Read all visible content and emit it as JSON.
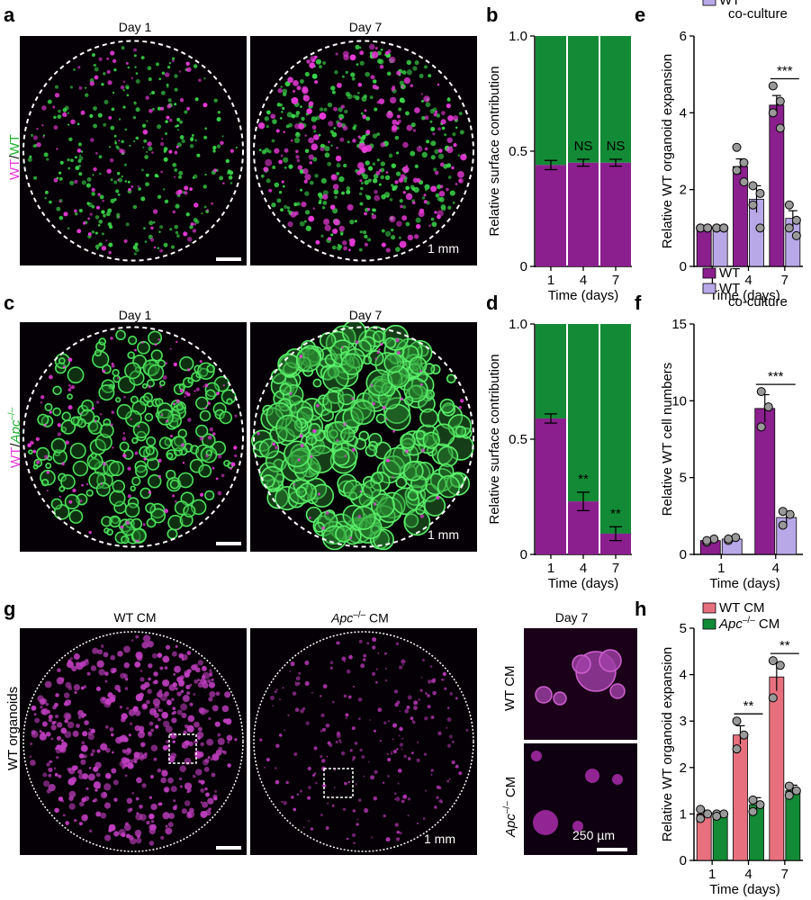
{
  "colors": {
    "wt": "#8b1f8e",
    "green": "#138a35",
    "lavender": "#b8a8e8",
    "pink": "#e8707e",
    "dotgreen": "#3bd64a",
    "dotmagenta": "#e83ad8",
    "image_bg": "#050005"
  },
  "panels": {
    "a": {
      "letter": "a",
      "side_label_1": "WT",
      "side_label_2": "/",
      "side_label_3": "WT",
      "day1": "Day 1",
      "day7": "Day 7",
      "scale": "1 mm"
    },
    "c": {
      "letter": "c",
      "side_label_1": "WT",
      "side_label_2": "/",
      "side_label_3": "Apc",
      "side_label_sup": "–/–",
      "day1": "Day 1",
      "day7": "Day 7",
      "scale": "1 mm"
    },
    "g": {
      "letter": "g",
      "side_label": "WT organoids",
      "wtcm": "WT CM",
      "apc": "Apc",
      "apc_sup": "–/–",
      "cm": " CM",
      "day7": "Day 7",
      "inset_top": "WT CM",
      "inset_bottom_apc": "Apc",
      "inset_bottom_sup": "–/–",
      "inset_bottom_cm": " CM",
      "scale1": "1 mm",
      "scale2": "250 µm"
    },
    "b": {
      "letter": "b"
    },
    "d": {
      "letter": "d"
    },
    "e": {
      "letter": "e"
    },
    "f": {
      "letter": "f"
    },
    "h": {
      "letter": "h"
    }
  },
  "chart_data": [
    {
      "id": "b",
      "type": "bar",
      "stacked": true,
      "categories": [
        "1",
        "4",
        "7"
      ],
      "series": [
        {
          "name": "WT",
          "values": [
            0.44,
            0.45,
            0.45
          ],
          "errors": [
            0.02,
            0.015,
            0.015
          ],
          "color": "#8b1f8e"
        },
        {
          "name": "WT",
          "values": [
            0.56,
            0.55,
            0.55
          ],
          "color": "#138a35"
        }
      ],
      "ylabel": "Relative surface contribution",
      "xlabel": "Time (days)",
      "ylim": [
        0,
        1.0
      ],
      "yticks": [
        "0",
        "0.5",
        "1.0"
      ],
      "annotations": [
        "",
        "NS",
        "NS"
      ]
    },
    {
      "id": "d",
      "type": "bar",
      "stacked": true,
      "categories": [
        "1",
        "4",
        "7"
      ],
      "series": [
        {
          "name": "WT",
          "values": [
            0.59,
            0.23,
            0.09
          ],
          "errors": [
            0.02,
            0.04,
            0.03
          ],
          "color": "#8b1f8e"
        },
        {
          "name": "Apc",
          "values": [
            0.41,
            0.77,
            0.91
          ],
          "color": "#138a35"
        }
      ],
      "ylabel": "Relative surface contribution",
      "xlabel": "Time (days)",
      "ylim": [
        0,
        1.0
      ],
      "yticks": [
        "0",
        "0.5",
        "1.0"
      ],
      "annotations": [
        "",
        "**",
        "**"
      ]
    },
    {
      "id": "e",
      "type": "bar",
      "categories": [
        "1",
        "4",
        "7"
      ],
      "series": [
        {
          "name": "WT",
          "values": [
            1.0,
            2.6,
            4.2
          ],
          "errors": [
            0.05,
            0.2,
            0.25
          ],
          "color": "#8b1f8e",
          "points": [
            [
              1,
              1,
              1,
              1
            ],
            [
              3.1,
              2.7,
              2.5,
              2.2
            ],
            [
              4.7,
              4.3,
              4.0,
              3.6
            ]
          ]
        },
        {
          "name": "WT co-culture",
          "values": [
            1.0,
            1.75,
            1.25
          ],
          "errors": [
            0.05,
            0.35,
            0.2
          ],
          "color": "#b8a8e8",
          "points": [
            [
              1,
              1,
              1,
              1
            ],
            [
              2.1,
              1.9,
              1.6,
              1.0
            ],
            [
              1.6,
              1.2,
              1.0,
              0.8
            ]
          ]
        }
      ],
      "legend": [
        "WT",
        "WT",
        "co-culture"
      ],
      "ylabel": "Relative WT organoid expansion",
      "xlabel": "Time (days)",
      "ylim": [
        0,
        6
      ],
      "yticks": [
        "0",
        "2",
        "4",
        "6"
      ],
      "significance": [
        {
          "category": 2,
          "label": "***"
        }
      ]
    },
    {
      "id": "f",
      "type": "bar",
      "categories": [
        "1",
        "4"
      ],
      "series": [
        {
          "name": "WT",
          "values": [
            0.9,
            9.5
          ],
          "errors": [
            0.15,
            0.9
          ],
          "color": "#8b1f8e",
          "points": [
            [
              0.8,
              1.0,
              0.9
            ],
            [
              10.6,
              9.6,
              8.3
            ]
          ]
        },
        {
          "name": "WT co-culture",
          "values": [
            1.0,
            2.4
          ],
          "errors": [
            0.15,
            0.4
          ],
          "color": "#b8a8e8",
          "points": [
            [
              0.9,
              1.1,
              1.0
            ],
            [
              2.8,
              2.6,
              1.9
            ]
          ]
        }
      ],
      "legend": [
        "WT",
        "WT",
        "co-culture"
      ],
      "ylabel": "Relative WT cell numbers",
      "xlabel": "Time (days)",
      "ylim": [
        0,
        15
      ],
      "yticks": [
        "0",
        "5",
        "10",
        "15"
      ],
      "significance": [
        {
          "category": 1,
          "label": "***"
        }
      ]
    },
    {
      "id": "h",
      "type": "bar",
      "categories": [
        "1",
        "4",
        "7"
      ],
      "series": [
        {
          "name": "WT CM",
          "values": [
            1.0,
            2.7,
            3.95
          ],
          "errors": [
            0.08,
            0.2,
            0.3
          ],
          "color": "#e8707e",
          "points": [
            [
              1.1,
              1.0,
              0.9
            ],
            [
              3.0,
              2.7,
              2.4
            ],
            [
              4.3,
              4.2,
              3.5
            ]
          ]
        },
        {
          "name": "Apc CM",
          "values": [
            1.0,
            1.2,
            1.5
          ],
          "errors": [
            0.05,
            0.15,
            0.12
          ],
          "color": "#138a35",
          "points": [
            [
              1.0,
              1.0,
              0.95
            ],
            [
              1.3,
              1.2,
              1.05
            ],
            [
              1.6,
              1.5,
              1.4
            ]
          ]
        }
      ],
      "legend": [
        "WT CM",
        "Apc",
        "–/–",
        " CM"
      ],
      "ylabel": "Relative WT organoid expansion",
      "xlabel": "Time (days)",
      "ylim": [
        0,
        5
      ],
      "yticks": [
        "0",
        "1",
        "2",
        "3",
        "4",
        "5"
      ],
      "significance": [
        {
          "category": 1,
          "label": "**"
        },
        {
          "category": 2,
          "label": "**"
        }
      ]
    }
  ]
}
